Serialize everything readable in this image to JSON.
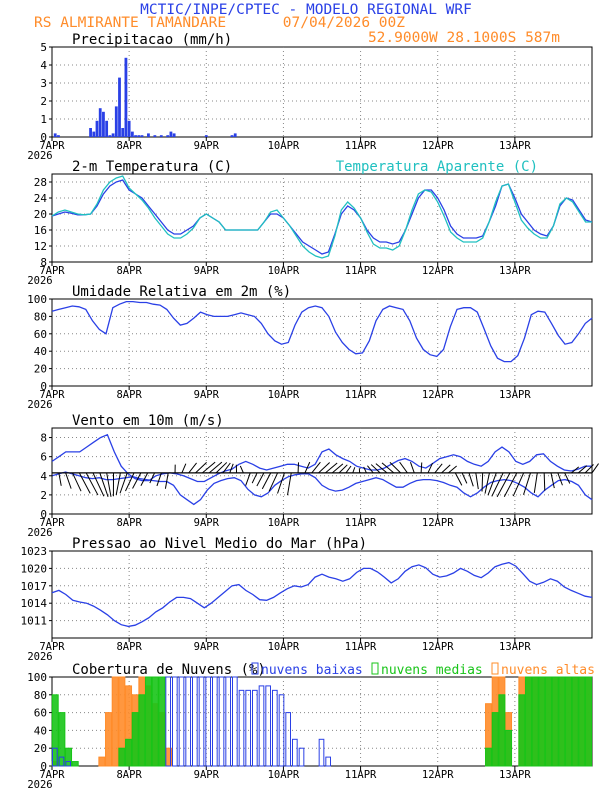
{
  "header": {
    "title": "MCTIC/INPE/CPTEC - MODELO REGIONAL WRF",
    "location": "RS ALMIRANTE TAMANDARE",
    "run": "07/04/2026 00Z",
    "coords": "52.9000W 28.1000S 587m"
  },
  "colors": {
    "blue": "#2a40e6",
    "cyan": "#20c0c0",
    "orange": "#ff8c2a",
    "green": "#18c418",
    "title_blue": "#2a40e6",
    "title_orange": "#ff8c2a",
    "grid": "#999999"
  },
  "x_axis": {
    "ticks": [
      "7APR",
      "8APR",
      "9APR",
      "10APR",
      "11APR",
      "12APR",
      "13APR"
    ],
    "year": "2026",
    "range_hours": [
      0,
      168
    ]
  },
  "chart_data": [
    {
      "id": "precip",
      "type": "bar",
      "title": "Precipitacao (mm/h)",
      "ylim": [
        0,
        5
      ],
      "yticks": [
        0,
        1,
        2,
        3,
        4,
        5
      ],
      "series": [
        {
          "name": "Precipitacao",
          "color": "#2a40e6",
          "x": [
            1,
            2,
            12,
            13,
            14,
            15,
            16,
            17,
            18,
            19,
            20,
            21,
            22,
            23,
            24,
            25,
            26,
            27,
            28,
            30,
            32,
            34,
            36,
            37,
            38,
            48,
            56,
            57
          ],
          "values": [
            0.2,
            0.1,
            0.5,
            0.3,
            0.9,
            1.6,
            1.4,
            0.9,
            0.1,
            0.2,
            1.7,
            3.3,
            0.5,
            4.4,
            0.9,
            0.3,
            0.1,
            0.1,
            0.1,
            0.2,
            0.1,
            0.1,
            0.1,
            0.3,
            0.2,
            0.1,
            0.1,
            0.2
          ]
        }
      ]
    },
    {
      "id": "temp",
      "type": "line",
      "title": "2-m Temperatura (C)",
      "legend": "Temperatura Aparente (C)",
      "ylim": [
        8,
        30
      ],
      "yticks": [
        8,
        12,
        16,
        20,
        24,
        28
      ],
      "series": [
        {
          "name": "2-m Temperatura (C)",
          "color": "#2a40e6",
          "values": [
            19.5,
            20,
            20.5,
            20.2,
            19.8,
            19.8,
            20,
            22,
            25,
            27,
            28,
            28.5,
            26,
            25,
            24,
            22,
            20,
            18,
            16,
            15,
            15,
            16,
            17,
            19,
            20,
            19,
            18,
            16,
            16,
            16,
            16,
            16,
            16,
            18,
            20,
            20,
            19,
            17,
            15,
            13,
            12,
            11,
            10,
            10.5,
            15,
            20,
            22,
            21,
            19,
            16,
            14,
            13,
            13,
            12.5,
            13,
            16,
            20,
            24,
            26,
            26,
            24,
            21,
            17,
            15,
            14,
            14,
            14,
            14.5,
            18,
            22,
            27,
            27.5,
            24,
            20,
            18,
            16,
            15,
            14.5,
            17,
            22,
            24,
            23.5,
            21,
            18.5,
            18
          ]
        },
        {
          "name": "Temperatura Aparente (C)",
          "color": "#20c0c0",
          "values": [
            19.5,
            20.5,
            21,
            20.5,
            20,
            19.8,
            20,
            22.5,
            26,
            28,
            29,
            29.5,
            26.5,
            25,
            23.5,
            21.5,
            19,
            17,
            15,
            14,
            14,
            15,
            16.5,
            19,
            20,
            19,
            18,
            16,
            16,
            16,
            16,
            16,
            16,
            18,
            20.5,
            21,
            19,
            17,
            14.5,
            12,
            10.5,
            9.5,
            9,
            9.5,
            14.5,
            21,
            23,
            21.5,
            19,
            15.5,
            12.5,
            11.5,
            11.5,
            11,
            12,
            16,
            21,
            25,
            26,
            25.5,
            23,
            19.5,
            15.5,
            14,
            13,
            13,
            13,
            14,
            18,
            23,
            27,
            27.5,
            23,
            18.5,
            16.5,
            15,
            14,
            14,
            17,
            22.5,
            24,
            23,
            20.5,
            18,
            18
          ]
        }
      ]
    },
    {
      "id": "rh",
      "type": "line",
      "title": "Umidade Relativa em 2m (%)",
      "ylim": [
        0,
        100
      ],
      "yticks": [
        0,
        20,
        40,
        60,
        80,
        100
      ],
      "series": [
        {
          "name": "Umidade Relativa",
          "color": "#2a40e6",
          "values": [
            86,
            88,
            90,
            92,
            91,
            88,
            75,
            65,
            60,
            90,
            94,
            97,
            97,
            96,
            96,
            94,
            93,
            88,
            78,
            70,
            72,
            78,
            85,
            82,
            80,
            80,
            80,
            82,
            84,
            82,
            80,
            72,
            60,
            52,
            48,
            50,
            70,
            85,
            90,
            92,
            90,
            80,
            62,
            50,
            42,
            37,
            38,
            52,
            75,
            88,
            92,
            90,
            88,
            75,
            55,
            42,
            36,
            34,
            42,
            68,
            88,
            90,
            90,
            85,
            66,
            46,
            32,
            28,
            28,
            35,
            55,
            82,
            86,
            85,
            72,
            58,
            48,
            50,
            60,
            72,
            78
          ]
        }
      ]
    },
    {
      "id": "wind",
      "type": "line",
      "title": "Vento em 10m (m/s)",
      "ylim": [
        0,
        9
      ],
      "yticks": [
        0,
        2,
        4,
        6,
        8
      ],
      "series": [
        {
          "name": "Vento em 10m (m/s)",
          "color": "#2a40e6",
          "values": [
            5.5,
            6,
            6.5,
            6.5,
            6.5,
            7,
            7.5,
            8,
            8.3,
            6.5,
            5,
            4.2,
            3.7,
            3.5,
            3.5,
            4,
            4.2,
            4.3,
            4.2,
            4,
            3.7,
            3.4,
            3.4,
            3.8,
            4.2,
            4.5,
            4.7,
            5.2,
            5.5,
            5.2,
            4.8,
            4.6,
            4.8,
            5,
            5.2,
            5.2,
            5,
            4.8,
            5.2,
            6.5,
            6.8,
            6.2,
            5.8,
            5.5,
            5,
            4.8,
            4.6,
            4.6,
            4.8,
            5.2,
            5.6,
            5.8,
            5.5,
            5,
            4.8,
            5.3,
            5.8,
            6,
            6.2,
            6,
            5.5,
            5.2,
            5,
            5.5,
            6.5,
            7,
            6.5,
            5.5,
            5.2,
            5.5,
            6.2,
            6.3,
            5.5,
            5,
            4.6,
            4.5,
            4.7,
            5,
            5
          ]
        },
        {
          "name": "Vento (componente)",
          "color": "#2a40e6",
          "values": [
            4,
            4.2,
            4.4,
            4.2,
            4,
            3.8,
            3.7,
            3.8,
            3.6,
            3.6,
            3.7,
            3.8,
            3.9,
            3.7,
            3.6,
            3.5,
            3.4,
            3.4,
            3,
            2,
            1.5,
            1,
            1.5,
            2.5,
            3.2,
            3.5,
            3.7,
            3.8,
            3.5,
            2.6,
            2,
            1.8,
            2.2,
            3,
            3.5,
            3.9,
            4.1,
            4.2,
            4.2,
            3.8,
            3,
            2.6,
            2.4,
            2.5,
            2.8,
            3.2,
            3.4,
            3.6,
            3.8,
            3.6,
            3.2,
            2.8,
            2.8,
            3.2,
            3.5,
            3.6,
            3.6,
            3.5,
            3.3,
            3,
            2.8,
            2.2,
            1.8,
            2.2,
            2.8,
            3.3,
            3.5,
            3.6,
            3.5,
            3.2,
            2.8,
            2.2,
            1.8,
            2.5,
            3,
            3.5,
            3.6,
            3.4,
            3,
            2,
            1.5
          ]
        }
      ]
    },
    {
      "id": "pressure",
      "type": "line",
      "title": "Pressao ao Nivel Medio do Mar (hPa)",
      "ylim": [
        1008,
        1023
      ],
      "yticks": [
        1011,
        1014,
        1017,
        1020,
        1023
      ],
      "series": [
        {
          "name": "Pressao",
          "color": "#2a40e6",
          "values": [
            1015.8,
            1016.2,
            1015.5,
            1014.5,
            1014.2,
            1014,
            1013.5,
            1012.8,
            1012,
            1011,
            1010.3,
            1010,
            1010.2,
            1010.8,
            1011.5,
            1012.5,
            1013.2,
            1014.2,
            1015,
            1015,
            1014.8,
            1014,
            1013.2,
            1014,
            1015,
            1016,
            1017,
            1017.2,
            1016.2,
            1015.5,
            1014.6,
            1014.5,
            1015,
            1015.8,
            1016.5,
            1017,
            1016.8,
            1017.2,
            1018.5,
            1019,
            1018.5,
            1018.2,
            1017.8,
            1018.2,
            1019.3,
            1020,
            1020,
            1019.4,
            1018.5,
            1017.5,
            1018.2,
            1019.5,
            1020.3,
            1020.6,
            1020.1,
            1019,
            1018.5,
            1018.7,
            1019.2,
            1020,
            1019.5,
            1018.8,
            1018.4,
            1019.2,
            1020.3,
            1020.7,
            1021,
            1020.4,
            1019.1,
            1017.8,
            1017.2,
            1017.6,
            1018.2,
            1017.8,
            1016.8,
            1016.2,
            1015.7,
            1015.2,
            1015
          ]
        }
      ]
    },
    {
      "id": "clouds",
      "type": "bar",
      "title": "Cobertura de Nuvens (%)",
      "legend": [
        "nuvens baixas",
        "nuvens medias",
        "nuvens altas"
      ],
      "ylim": [
        0,
        100
      ],
      "yticks": [
        0,
        20,
        40,
        60,
        80,
        100
      ],
      "series": [
        {
          "name": "nuvens altas",
          "color": "#ff8c2a",
          "values": [
            5,
            0,
            0,
            0,
            0,
            0,
            0,
            10,
            60,
            100,
            100,
            90,
            80,
            100,
            90,
            70,
            60,
            20,
            0,
            0,
            0,
            0,
            0,
            0,
            0,
            0,
            0,
            0,
            0,
            0,
            0,
            0,
            0,
            0,
            0,
            0,
            0,
            0,
            0,
            0,
            0,
            0,
            0,
            0,
            0,
            0,
            0,
            0,
            0,
            0,
            0,
            0,
            0,
            0,
            0,
            0,
            0,
            0,
            0,
            0,
            0,
            0,
            0,
            0,
            0,
            70,
            100,
            100,
            60,
            0,
            100,
            100,
            100,
            100,
            100,
            100,
            100,
            100,
            100,
            100,
            100
          ]
        },
        {
          "name": "nuvens medias",
          "color": "#18c418",
          "values": [
            80,
            60,
            20,
            5,
            0,
            0,
            0,
            0,
            0,
            0,
            20,
            30,
            60,
            80,
            100,
            100,
            100,
            0,
            0,
            0,
            0,
            0,
            0,
            0,
            0,
            0,
            0,
            0,
            0,
            0,
            0,
            0,
            0,
            0,
            0,
            0,
            0,
            0,
            0,
            0,
            0,
            0,
            0,
            0,
            0,
            0,
            0,
            0,
            0,
            0,
            0,
            0,
            0,
            0,
            0,
            0,
            0,
            0,
            0,
            0,
            0,
            0,
            0,
            0,
            0,
            20,
            60,
            80,
            40,
            0,
            80,
            100,
            100,
            100,
            100,
            100,
            100,
            100,
            100,
            100,
            100
          ]
        },
        {
          "name": "nuvens baixas",
          "color": "#2a40e6",
          "values": [
            20,
            10,
            5,
            0,
            0,
            0,
            0,
            0,
            0,
            0,
            0,
            0,
            0,
            0,
            0,
            0,
            0,
            100,
            100,
            100,
            100,
            100,
            100,
            100,
            100,
            100,
            100,
            100,
            85,
            85,
            85,
            90,
            90,
            85,
            80,
            60,
            30,
            20,
            0,
            0,
            30,
            10,
            0,
            0,
            0,
            0,
            0,
            0,
            0,
            0,
            0,
            0,
            0,
            0,
            0,
            0,
            0,
            0,
            0,
            0,
            0,
            0,
            0,
            0,
            0,
            0,
            0,
            0,
            0,
            0,
            0,
            0,
            0,
            0,
            0,
            0,
            0,
            0,
            0,
            0,
            0
          ]
        }
      ]
    }
  ]
}
